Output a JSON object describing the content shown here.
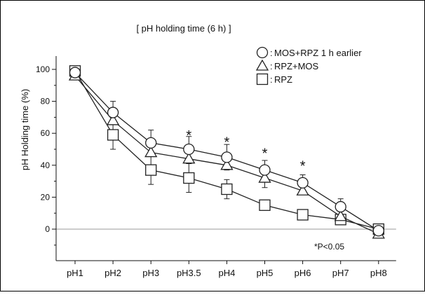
{
  "chart_data": {
    "type": "line",
    "title": "[ pH holding time (6 h) ]",
    "xlabel": "",
    "ylabel": "pH Holding time (%)",
    "categories": [
      "pH1",
      "pH2",
      "pH3",
      "pH3.5",
      "pH4",
      "pH5",
      "pH6",
      "pH7",
      "pH8"
    ],
    "yticks": [
      0,
      20,
      40,
      60,
      80,
      100
    ],
    "ylim": [
      -10,
      112
    ],
    "grid": false,
    "legend_position": "top-right",
    "series": [
      {
        "name": "MOS+RPZ 1 h earlier",
        "symbol": "○",
        "marker": "circle",
        "values": [
          98,
          73,
          54,
          50,
          45,
          37,
          29,
          14,
          -1
        ],
        "errors": [
          0,
          7,
          8,
          8,
          8,
          6,
          5,
          5,
          0
        ]
      },
      {
        "name": "RPZ+MOS",
        "symbol": "△",
        "marker": "triangle",
        "values": [
          96,
          68,
          48,
          44,
          40,
          32,
          24,
          8,
          -3
        ],
        "errors": [
          0,
          0,
          0,
          0,
          0,
          6,
          0,
          0,
          0
        ]
      },
      {
        "name": "RPZ",
        "symbol": "□",
        "marker": "square",
        "values": [
          99,
          59,
          37,
          32,
          25,
          15,
          9,
          6,
          0
        ],
        "errors": [
          0,
          9,
          9,
          9,
          6,
          3,
          3,
          2,
          0
        ]
      }
    ],
    "significance": {
      "marker": "*",
      "categories": [
        "pH3.5",
        "pH4",
        "pH5",
        "pH6"
      ],
      "y_values": [
        60,
        56,
        49,
        41
      ]
    },
    "footnote": "*P<0.05",
    "colors": {
      "line": "#222222",
      "marker_fill": "#ffffff",
      "axis": "#111111",
      "zero_line": "#999999"
    }
  }
}
